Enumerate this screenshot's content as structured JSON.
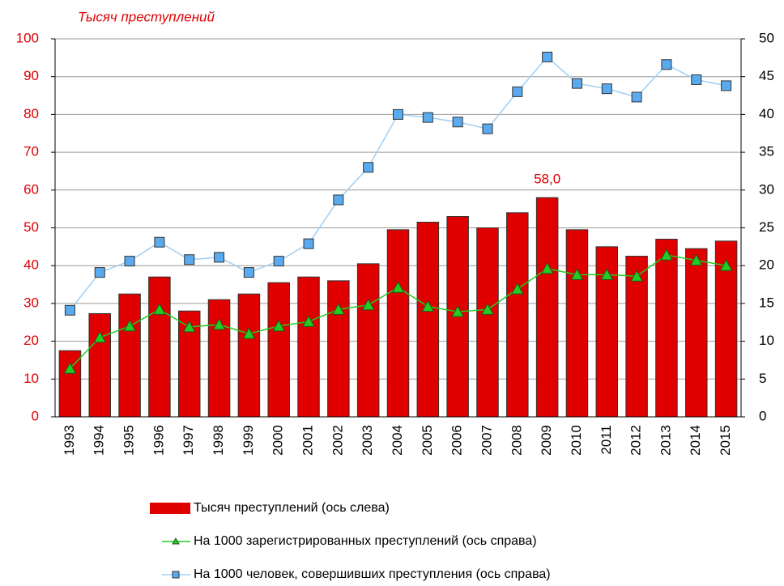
{
  "chart_data": {
    "type": "bar-line",
    "title": "Тысяч преступлений",
    "categories": [
      "1993",
      "1994",
      "1995",
      "1996",
      "1997",
      "1998",
      "1999",
      "2000",
      "2001",
      "2002",
      "2003",
      "2004",
      "2005",
      "2006",
      "2007",
      "2008",
      "2009",
      "2010",
      "2011",
      "2012",
      "2013",
      "2014",
      "2015"
    ],
    "ylim": [
      0,
      100
    ],
    "yticks": [
      0,
      10,
      20,
      30,
      40,
      50,
      60,
      70,
      80,
      90,
      100
    ],
    "y2lim": [
      0,
      50
    ],
    "y2ticks": [
      0,
      5,
      10,
      15,
      20,
      25,
      30,
      35,
      40,
      45,
      50
    ],
    "grid": true,
    "series": [
      {
        "name": "Тысяч преступлений (ось слева)",
        "type": "bar",
        "color": "#e00000",
        "values": [
          17.5,
          27.3,
          32.5,
          37,
          28,
          31,
          32.5,
          35.5,
          37,
          36,
          40.5,
          49.5,
          51.5,
          53,
          50,
          54,
          58,
          49.5,
          45,
          42.5,
          47,
          44.5,
          46.5
        ],
        "value_labels": [
          null,
          null,
          null,
          null,
          null,
          null,
          null,
          null,
          null,
          null,
          null,
          null,
          null,
          null,
          null,
          null,
          "58,0",
          null,
          null,
          null,
          null,
          null,
          null
        ]
      },
      {
        "name": "На 1000 зарегистрированных преступлений (ось справа)",
        "type": "line",
        "axis": "y2",
        "color": "#22cc22",
        "marker": "triangle",
        "values": [
          6.4,
          10.5,
          12,
          14.2,
          11.9,
          12.2,
          11,
          12,
          12.6,
          14.2,
          14.8,
          17.1,
          14.6,
          13.9,
          14.2,
          16.9,
          19.6,
          18.8,
          18.8,
          18.6,
          21.4,
          20.7,
          20
        ]
      },
      {
        "name": "На 1000 человек, совершивших преступления (ось справа)",
        "type": "line",
        "axis": "y2",
        "color": "#9fcff5",
        "marker": "square",
        "values": [
          14.1,
          19.1,
          20.6,
          23.1,
          20.8,
          21.1,
          19.1,
          20.6,
          22.9,
          28.7,
          33,
          40,
          39.6,
          39,
          38.1,
          43,
          47.6,
          44.1,
          43.4,
          42.3,
          46.6,
          44.6,
          43.8
        ]
      }
    ]
  }
}
